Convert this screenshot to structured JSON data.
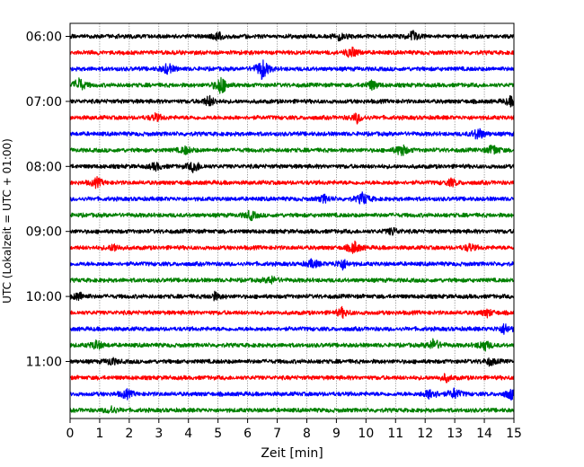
{
  "chart_data": {
    "type": "line",
    "title": "",
    "xlabel": "Zeit  [min]",
    "ylabel": "UTC (Lokalzeit = UTC + 01:00)",
    "xlim": [
      0,
      15
    ],
    "x_ticks": [
      0,
      1,
      2,
      3,
      4,
      5,
      6,
      7,
      8,
      9,
      10,
      11,
      12,
      13,
      14,
      15
    ],
    "x_tick_labels": [
      "0",
      "1",
      "2",
      "3",
      "4",
      "5",
      "6",
      "7",
      "8",
      "9",
      "10",
      "11",
      "12",
      "13",
      "14",
      "15"
    ],
    "y_tick_labels": [
      "06:00",
      "07:00",
      "08:00",
      "09:00",
      "10:00",
      "11:00"
    ],
    "vertical_grid": true,
    "trace_start": "06:00",
    "trace_interval_min": 15,
    "trace_colors": [
      "#000000",
      "#ff0000",
      "#0000ff",
      "#008000"
    ],
    "series": [
      {
        "start": "06:00",
        "color": "#000000",
        "events": [
          {
            "x": 5.0,
            "a": 5
          },
          {
            "x": 9.1,
            "a": 4
          },
          {
            "x": 11.6,
            "a": 6
          }
        ]
      },
      {
        "start": "06:15",
        "color": "#ff0000",
        "events": [
          {
            "x": 9.5,
            "a": 6
          }
        ]
      },
      {
        "start": "06:30",
        "color": "#0000ff",
        "events": [
          {
            "x": 3.3,
            "a": 6
          },
          {
            "x": 6.5,
            "a": 12
          }
        ]
      },
      {
        "start": "06:45",
        "color": "#008000",
        "events": [
          {
            "x": 0.3,
            "a": 8
          },
          {
            "x": 5.1,
            "a": 11
          },
          {
            "x": 10.2,
            "a": 5
          }
        ]
      },
      {
        "start": "07:00",
        "color": "#000000",
        "events": [
          {
            "x": 4.7,
            "a": 6
          },
          {
            "x": 14.9,
            "a": 5
          }
        ]
      },
      {
        "start": "07:15",
        "color": "#ff0000",
        "events": [
          {
            "x": 2.9,
            "a": 4
          },
          {
            "x": 9.7,
            "a": 5
          }
        ]
      },
      {
        "start": "07:30",
        "color": "#0000ff",
        "events": [
          {
            "x": 13.8,
            "a": 7
          }
        ]
      },
      {
        "start": "07:45",
        "color": "#008000",
        "events": [
          {
            "x": 3.9,
            "a": 4
          },
          {
            "x": 11.2,
            "a": 7
          },
          {
            "x": 14.3,
            "a": 6
          }
        ]
      },
      {
        "start": "08:00",
        "color": "#000000",
        "events": [
          {
            "x": 2.9,
            "a": 4
          },
          {
            "x": 4.2,
            "a": 7
          }
        ]
      },
      {
        "start": "08:15",
        "color": "#ff0000",
        "events": [
          {
            "x": 0.9,
            "a": 5
          },
          {
            "x": 12.9,
            "a": 4
          }
        ]
      },
      {
        "start": "08:30",
        "color": "#0000ff",
        "events": [
          {
            "x": 8.6,
            "a": 4
          },
          {
            "x": 9.9,
            "a": 7
          }
        ]
      },
      {
        "start": "08:45",
        "color": "#008000",
        "events": [
          {
            "x": 6.1,
            "a": 5
          }
        ]
      },
      {
        "start": "09:00",
        "color": "#000000",
        "events": [
          {
            "x": 10.9,
            "a": 4
          }
        ]
      },
      {
        "start": "09:15",
        "color": "#ff0000",
        "events": [
          {
            "x": 1.5,
            "a": 4
          },
          {
            "x": 9.6,
            "a": 7
          },
          {
            "x": 13.5,
            "a": 4
          }
        ]
      },
      {
        "start": "09:30",
        "color": "#0000ff",
        "events": [
          {
            "x": 8.2,
            "a": 5
          },
          {
            "x": 9.2,
            "a": 6
          }
        ]
      },
      {
        "start": "09:45",
        "color": "#008000",
        "events": [
          {
            "x": 6.8,
            "a": 4
          }
        ]
      },
      {
        "start": "10:00",
        "color": "#000000",
        "events": [
          {
            "x": 0.3,
            "a": 5
          },
          {
            "x": 4.9,
            "a": 4
          }
        ]
      },
      {
        "start": "10:15",
        "color": "#ff0000",
        "events": [
          {
            "x": 9.2,
            "a": 5
          },
          {
            "x": 14.1,
            "a": 4
          }
        ]
      },
      {
        "start": "10:30",
        "color": "#0000ff",
        "events": [
          {
            "x": 14.7,
            "a": 6
          }
        ]
      },
      {
        "start": "10:45",
        "color": "#008000",
        "events": [
          {
            "x": 0.9,
            "a": 5
          },
          {
            "x": 12.3,
            "a": 7
          },
          {
            "x": 14.0,
            "a": 6
          }
        ]
      },
      {
        "start": "11:00",
        "color": "#000000",
        "events": [
          {
            "x": 1.4,
            "a": 4
          },
          {
            "x": 14.2,
            "a": 4
          }
        ]
      },
      {
        "start": "11:15",
        "color": "#ff0000",
        "events": [
          {
            "x": 12.7,
            "a": 4
          }
        ]
      },
      {
        "start": "11:30",
        "color": "#0000ff",
        "events": [
          {
            "x": 1.9,
            "a": 5
          },
          {
            "x": 12.2,
            "a": 7
          },
          {
            "x": 13.0,
            "a": 6
          },
          {
            "x": 14.9,
            "a": 6
          }
        ]
      },
      {
        "start": "11:45",
        "color": "#008000",
        "events": [
          {
            "x": 1.4,
            "a": 4
          }
        ]
      }
    ]
  }
}
